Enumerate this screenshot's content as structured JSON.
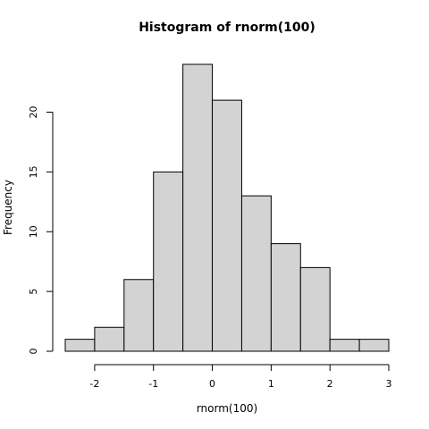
{
  "chart_data": {
    "type": "bar",
    "title": "Histogram of rnorm(100)",
    "xlabel": "rnorm(100)",
    "ylabel": "Frequency",
    "bin_edges": [
      -2.5,
      -2,
      -1.5,
      -1,
      -0.5,
      0,
      0.5,
      1,
      1.5,
      2,
      2.5,
      3
    ],
    "values": [
      1,
      2,
      6,
      15,
      24,
      21,
      13,
      9,
      7,
      1,
      1
    ],
    "xlim": [
      -2.5,
      3
    ],
    "ylim": [
      0,
      24
    ],
    "x_ticks": [
      -2,
      -1,
      0,
      1,
      2,
      3
    ],
    "x_tick_labels": [
      "-2",
      "-1",
      "0",
      "1",
      "2",
      "3"
    ],
    "y_ticks": [
      0,
      5,
      10,
      15,
      20
    ],
    "y_tick_labels": [
      "0",
      "5",
      "10",
      "15",
      "20"
    ],
    "grid": false,
    "bar_fill": "#d3d3d3",
    "bar_stroke": "#000000"
  }
}
